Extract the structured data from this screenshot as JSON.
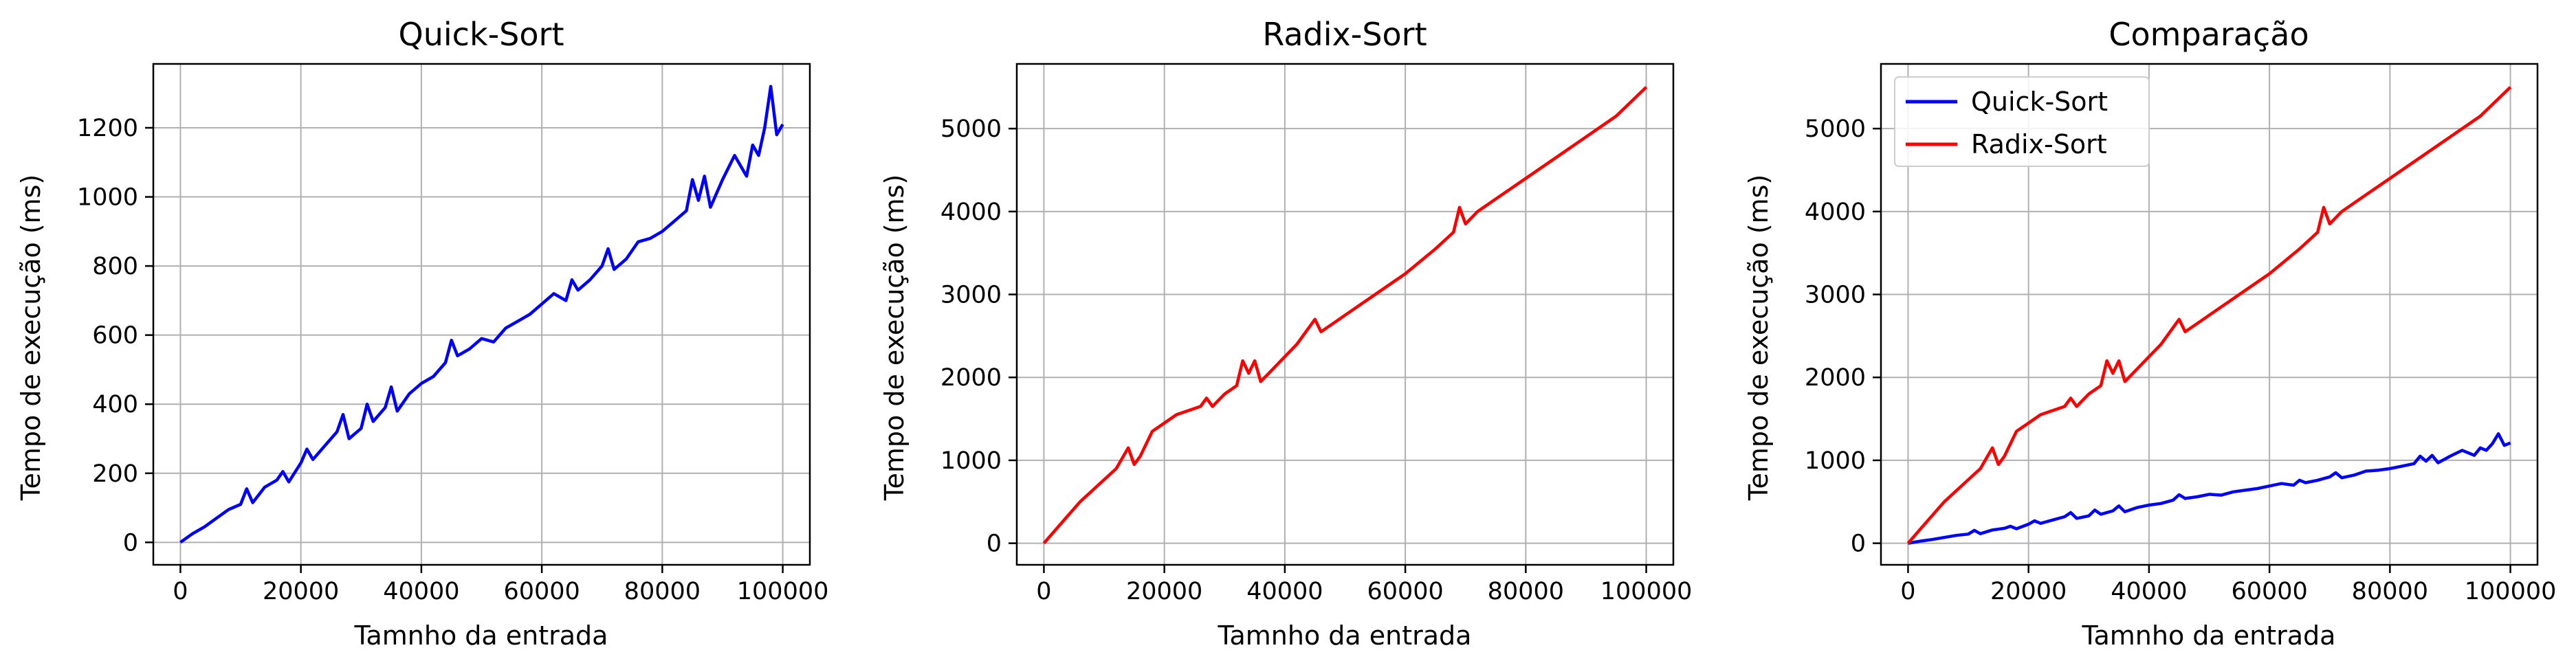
{
  "chart_data": [
    {
      "type": "line",
      "title": "Quick-Sort",
      "xlabel": "Tamnho da entrada",
      "ylabel": "Tempo de execução (ms)",
      "xlim": [
        -4500,
        104500
      ],
      "ylim": [
        -65,
        1385
      ],
      "xticks": [
        0,
        20000,
        40000,
        60000,
        80000,
        100000
      ],
      "yticks": [
        0,
        200,
        400,
        600,
        800,
        1000,
        1200
      ],
      "grid": true,
      "series": [
        {
          "color": "#0000ff",
          "x": [
            0,
            2000,
            4000,
            6000,
            8000,
            10000,
            11000,
            12000,
            14000,
            16000,
            17000,
            18000,
            20000,
            21000,
            22000,
            24000,
            26000,
            27000,
            28000,
            30000,
            31000,
            32000,
            34000,
            35000,
            36000,
            38000,
            40000,
            42000,
            44000,
            45000,
            46000,
            48000,
            50000,
            52000,
            54000,
            56000,
            58000,
            60000,
            62000,
            64000,
            65000,
            66000,
            68000,
            70000,
            71000,
            72000,
            74000,
            76000,
            78000,
            80000,
            82000,
            84000,
            85000,
            86000,
            87000,
            88000,
            90000,
            92000,
            94000,
            95000,
            96000,
            97000,
            98000,
            99000,
            100000
          ],
          "y": [
            0,
            25,
            45,
            70,
            95,
            110,
            155,
            115,
            160,
            180,
            205,
            175,
            230,
            270,
            240,
            280,
            320,
            370,
            300,
            330,
            400,
            350,
            390,
            450,
            380,
            430,
            460,
            480,
            520,
            585,
            540,
            560,
            590,
            580,
            620,
            640,
            660,
            690,
            720,
            700,
            760,
            730,
            760,
            800,
            850,
            790,
            820,
            870,
            880,
            900,
            930,
            960,
            1050,
            990,
            1060,
            970,
            1050,
            1120,
            1060,
            1150,
            1120,
            1200,
            1320,
            1180,
            1210
          ]
        }
      ]
    },
    {
      "type": "line",
      "title": "Radix-Sort",
      "xlabel": "Tamnho da entrada",
      "ylabel": "Tempo de execução (ms)",
      "xlim": [
        -4500,
        104500
      ],
      "ylim": [
        -260,
        5780
      ],
      "xticks": [
        0,
        20000,
        40000,
        60000,
        80000,
        100000
      ],
      "yticks": [
        0,
        1000,
        2000,
        3000,
        4000,
        5000
      ],
      "grid": true,
      "series": [
        {
          "color": "#ff0000",
          "x": [
            0,
            3000,
            6000,
            9000,
            12000,
            14000,
            15000,
            16000,
            18000,
            20000,
            22000,
            24000,
            26000,
            27000,
            28000,
            30000,
            32000,
            33000,
            34000,
            35000,
            36000,
            38000,
            40000,
            42000,
            44000,
            45000,
            46000,
            48000,
            50000,
            55000,
            60000,
            65000,
            68000,
            69000,
            70000,
            72000,
            75000,
            80000,
            85000,
            90000,
            95000,
            100000
          ],
          "y": [
            0,
            250,
            500,
            700,
            900,
            1150,
            950,
            1050,
            1350,
            1450,
            1550,
            1600,
            1650,
            1750,
            1650,
            1800,
            1900,
            2200,
            2050,
            2200,
            1950,
            2100,
            2250,
            2400,
            2600,
            2700,
            2550,
            2650,
            2750,
            3000,
            3250,
            3550,
            3750,
            4050,
            3850,
            4000,
            4150,
            4400,
            4650,
            4900,
            5150,
            5500
          ]
        }
      ]
    },
    {
      "type": "line",
      "title": "Comparação",
      "xlabel": "Tamnho da entrada",
      "ylabel": "Tempo de execução (ms)",
      "xlim": [
        -4500,
        104500
      ],
      "ylim": [
        -260,
        5780
      ],
      "xticks": [
        0,
        20000,
        40000,
        60000,
        80000,
        100000
      ],
      "yticks": [
        0,
        1000,
        2000,
        3000,
        4000,
        5000
      ],
      "grid": true,
      "legend": "top-left",
      "series": [
        {
          "name": "Quick-Sort",
          "color": "#0000ff",
          "x": [
            0,
            2000,
            4000,
            6000,
            8000,
            10000,
            11000,
            12000,
            14000,
            16000,
            17000,
            18000,
            20000,
            21000,
            22000,
            24000,
            26000,
            27000,
            28000,
            30000,
            31000,
            32000,
            34000,
            35000,
            36000,
            38000,
            40000,
            42000,
            44000,
            45000,
            46000,
            48000,
            50000,
            52000,
            54000,
            56000,
            58000,
            60000,
            62000,
            64000,
            65000,
            66000,
            68000,
            70000,
            71000,
            72000,
            74000,
            76000,
            78000,
            80000,
            82000,
            84000,
            85000,
            86000,
            87000,
            88000,
            90000,
            92000,
            94000,
            95000,
            96000,
            97000,
            98000,
            99000,
            100000
          ],
          "y": [
            0,
            25,
            45,
            70,
            95,
            110,
            155,
            115,
            160,
            180,
            205,
            175,
            230,
            270,
            240,
            280,
            320,
            370,
            300,
            330,
            400,
            350,
            390,
            450,
            380,
            430,
            460,
            480,
            520,
            585,
            540,
            560,
            590,
            580,
            620,
            640,
            660,
            690,
            720,
            700,
            760,
            730,
            760,
            800,
            850,
            790,
            820,
            870,
            880,
            900,
            930,
            960,
            1050,
            990,
            1060,
            970,
            1050,
            1120,
            1060,
            1150,
            1120,
            1200,
            1320,
            1180,
            1210
          ]
        },
        {
          "name": "Radix-Sort",
          "color": "#ff0000",
          "x": [
            0,
            3000,
            6000,
            9000,
            12000,
            14000,
            15000,
            16000,
            18000,
            20000,
            22000,
            24000,
            26000,
            27000,
            28000,
            30000,
            32000,
            33000,
            34000,
            35000,
            36000,
            38000,
            40000,
            42000,
            44000,
            45000,
            46000,
            48000,
            50000,
            55000,
            60000,
            65000,
            68000,
            69000,
            70000,
            72000,
            75000,
            80000,
            85000,
            90000,
            95000,
            100000
          ],
          "y": [
            0,
            250,
            500,
            700,
            900,
            1150,
            950,
            1050,
            1350,
            1450,
            1550,
            1600,
            1650,
            1750,
            1650,
            1800,
            1900,
            2200,
            2050,
            2200,
            1950,
            2100,
            2250,
            2400,
            2600,
            2700,
            2550,
            2650,
            2750,
            3000,
            3250,
            3550,
            3750,
            4050,
            3850,
            4000,
            4150,
            4400,
            4650,
            4900,
            5150,
            5500
          ]
        }
      ]
    }
  ]
}
